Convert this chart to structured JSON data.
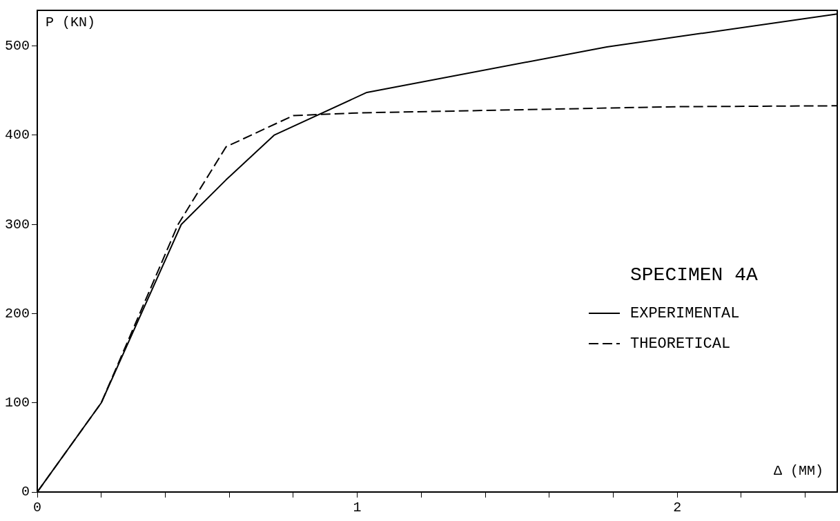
{
  "chart_data": {
    "type": "line",
    "xlabel": "Δ (MM)",
    "ylabel": "P (KN)",
    "legend_title": "SPECIMEN 4A",
    "legend": "right",
    "grid": false,
    "marker": "none",
    "xlim": [
      0,
      2.5
    ],
    "ylim": [
      0,
      540
    ],
    "xticks": [
      0,
      {
        "value": 0.2,
        "label": null
      },
      {
        "value": 0.4,
        "label": null
      },
      {
        "value": 0.6,
        "label": null
      },
      {
        "value": 0.8,
        "label": null
      },
      1,
      {
        "value": 1.2,
        "label": null
      },
      {
        "value": 1.4,
        "label": null
      },
      {
        "value": 1.6,
        "label": null
      },
      {
        "value": 1.8,
        "label": null
      },
      2,
      {
        "value": 2.2,
        "label": null
      },
      {
        "value": 2.4,
        "label": null
      }
    ],
    "yticks": [
      0,
      100,
      200,
      300,
      400,
      500
    ],
    "series": [
      {
        "name": "EXPERIMENTAL",
        "color": "#000000",
        "line_style": "solid",
        "x": [
          0,
          0.2,
          0.45,
          0.59,
          0.74,
          1.03,
          1.78,
          2.5
        ],
        "values": [
          0,
          100,
          300,
          350,
          400,
          448,
          499,
          536
        ]
      },
      {
        "name": "THEORETICAL",
        "color": "#000000",
        "line_style": "dashed",
        "x": [
          0,
          0.2,
          0.44,
          0.59,
          0.8,
          1.0,
          2.0,
          2.5
        ],
        "values": [
          0,
          100,
          300,
          387,
          422,
          425,
          432,
          433
        ]
      }
    ]
  }
}
